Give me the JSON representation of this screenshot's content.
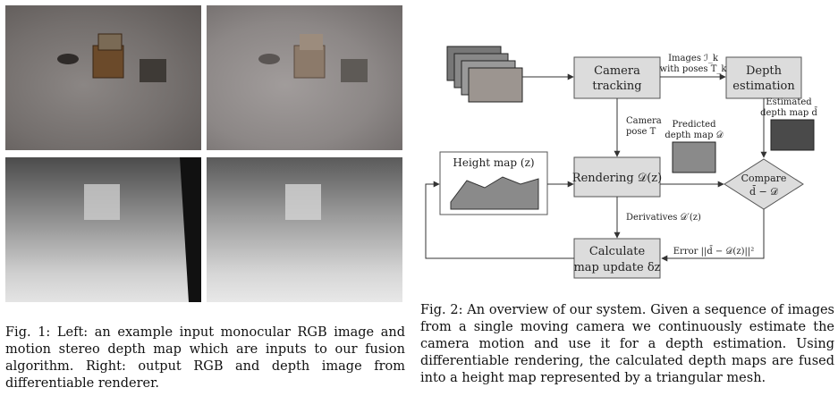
{
  "figure1": {
    "caption": "Fig. 1: Left: an example input monocular RGB image and motion stereo depth map which are inputs to our fusion algorithm. Right: output RGB and depth image from differentiable renderer."
  },
  "figure2": {
    "caption": "Fig. 2: An overview of our system. Given a sequence of images from a single moving camera we continuously estimate the camera motion and use it for a depth estimation. Using differentiable rendering, the calculated depth maps are fused into a height map represented by a triangular mesh.",
    "nodes": {
      "camera_tracking": [
        "Camera",
        "tracking"
      ],
      "depth_estimation": [
        "Depth",
        "estimation"
      ],
      "rendering": "Rendering 𝒟(z)",
      "height_map": "Height map (z)",
      "compare": [
        "Compare",
        "d̄ − 𝒟"
      ],
      "calculate": [
        "Calculate",
        "map update δz"
      ]
    },
    "labels": {
      "images_poses": [
        "Images ℐ_k",
        "with poses T_k"
      ],
      "camera_pose": [
        "Camera",
        "pose T"
      ],
      "predicted_depth": [
        "Predicted",
        "depth map 𝒟"
      ],
      "estimated_depth": [
        "Estimated",
        "depth map d̄"
      ],
      "derivatives": "Derivatives 𝒟′(z)",
      "error": "Error ||d̄ − 𝒟(z)||²"
    }
  }
}
